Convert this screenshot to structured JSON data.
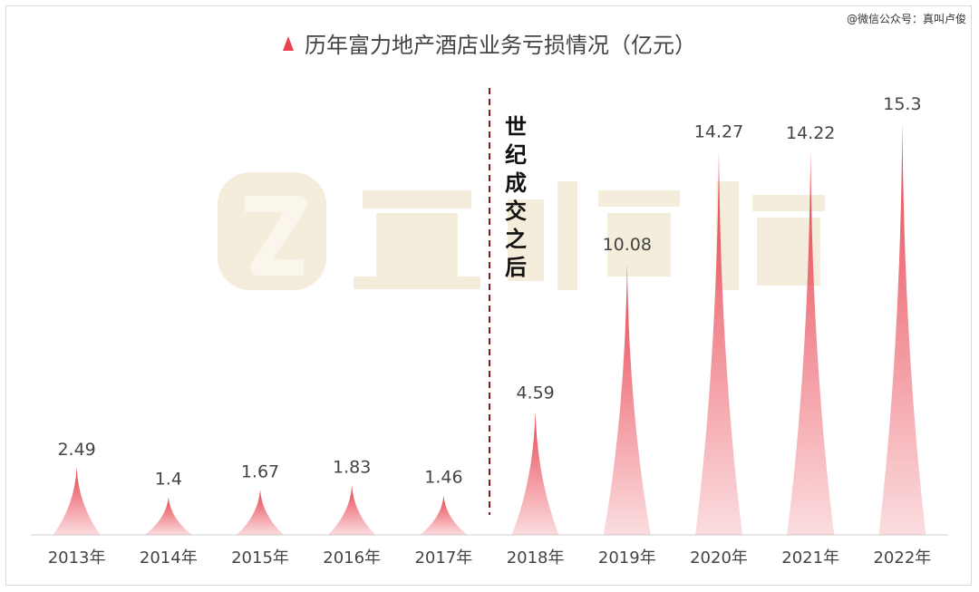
{
  "credit": "@微信公众号：真叫卢俊",
  "chart_data": {
    "type": "bar",
    "title": "历年富力地产酒店业务亏损情况（亿元）",
    "categories": [
      "2013年",
      "2014年",
      "2015年",
      "2016年",
      "2017年",
      "2018年",
      "2019年",
      "2020年",
      "2021年",
      "2022年"
    ],
    "values": [
      2.49,
      1.4,
      1.67,
      1.83,
      1.46,
      4.59,
      10.08,
      14.27,
      14.22,
      15.3
    ],
    "value_labels": [
      "2.49",
      "1.4",
      "1.67",
      "1.83",
      "1.46",
      "4.59",
      "10.08",
      "14.27",
      "14.22",
      "15.3"
    ],
    "ylim": [
      0,
      15.8
    ],
    "grid": false,
    "legend_position": "top",
    "bar_color": "#e8424f",
    "annotation": {
      "text": "世纪成交之后",
      "between": [
        "2017年",
        "2018年"
      ],
      "line_color": "#8b1a1a"
    },
    "watermark": "真叫卢俊"
  }
}
